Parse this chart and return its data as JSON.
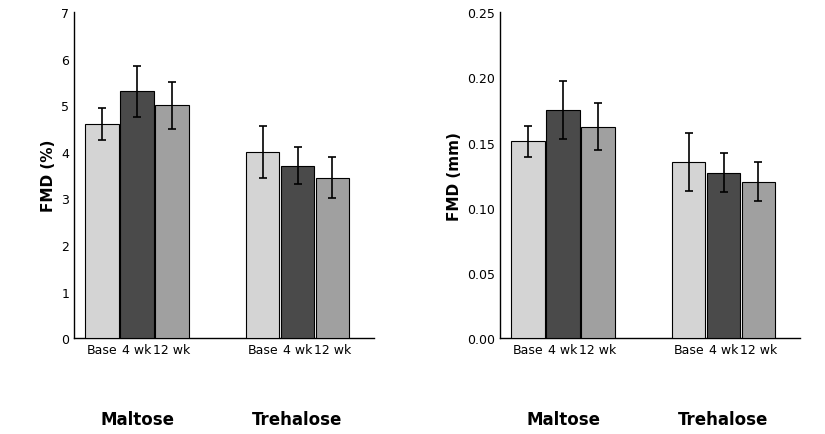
{
  "left": {
    "ylabel": "FMD (%)",
    "ylim": [
      0,
      7
    ],
    "yticks": [
      0,
      1,
      2,
      3,
      4,
      5,
      6,
      7
    ],
    "maltose": {
      "values": [
        4.6,
        5.3,
        5.0
      ],
      "errors": [
        0.35,
        0.55,
        0.5
      ]
    },
    "trehalose": {
      "values": [
        4.0,
        3.7,
        3.45
      ],
      "errors": [
        0.55,
        0.4,
        0.45
      ]
    }
  },
  "right": {
    "ylabel": "FMD (mm)",
    "ylim": [
      0.0,
      0.25
    ],
    "yticks": [
      0.0,
      0.05,
      0.1,
      0.15,
      0.2,
      0.25
    ],
    "maltose": {
      "values": [
        0.151,
        0.175,
        0.162
      ],
      "errors": [
        0.012,
        0.022,
        0.018
      ]
    },
    "trehalose": {
      "values": [
        0.135,
        0.127,
        0.12
      ],
      "errors": [
        0.022,
        0.015,
        0.015
      ]
    }
  },
  "bar_colors": [
    "#d4d4d4",
    "#4a4a4a",
    "#a0a0a0"
  ],
  "bar_edgecolor": "#000000",
  "group_labels": [
    "Base",
    "4 wk",
    "12 wk"
  ],
  "background_color": "#ffffff",
  "bar_width": 0.25,
  "capsize": 3,
  "elinewidth": 1.2,
  "ecapthick": 1.2
}
